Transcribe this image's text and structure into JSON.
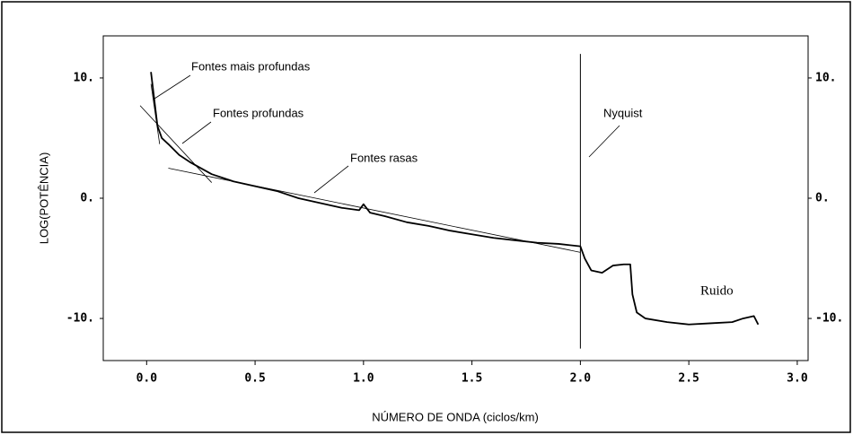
{
  "chart_data": {
    "type": "line",
    "xlabel": "NÚMERO DE ONDA (ciclos/km)",
    "ylabel": "LOG(POTÊNCIA)",
    "xlim": [
      -0.2,
      3.05
    ],
    "ylim": [
      -13.5,
      13.5
    ],
    "y2lim": [
      -13.5,
      13.5
    ],
    "xticks": [
      {
        "value": 0,
        "label": "0.0"
      },
      {
        "value": 0.5,
        "label": "0.5"
      },
      {
        "value": 1,
        "label": "1.0"
      },
      {
        "value": 1.5,
        "label": "1.5"
      },
      {
        "value": 2,
        "label": "2.0"
      },
      {
        "value": 2.5,
        "label": "2.5"
      },
      {
        "value": 3,
        "label": "3.0"
      }
    ],
    "yticks": [
      {
        "value": 10,
        "label": "10."
      },
      {
        "value": 0,
        "label": "0."
      },
      {
        "value": -10,
        "label": "-10."
      }
    ],
    "y2ticks": [
      {
        "value": 10,
        "label": "10."
      },
      {
        "value": 0,
        "label": "0."
      },
      {
        "value": -10,
        "label": "-10."
      }
    ],
    "series": [
      {
        "color": "#000000",
        "x": [
          0.02,
          0.03,
          0.05,
          0.07,
          0.1,
          0.15,
          0.2,
          0.3,
          0.4,
          0.5,
          0.6,
          0.7,
          0.8,
          0.9,
          0.98,
          1.0,
          1.03,
          1.1,
          1.2,
          1.3,
          1.4,
          1.5,
          1.6,
          1.7,
          1.8,
          1.9,
          2.0,
          2.02,
          2.05,
          2.1,
          2.15,
          2.2,
          2.23,
          2.24,
          2.26,
          2.3,
          2.4,
          2.5,
          2.6,
          2.7,
          2.75,
          2.8,
          2.82
        ],
        "values": [
          10.5,
          9,
          6,
          5,
          4.5,
          3.6,
          3,
          2,
          1.4,
          1,
          0.6,
          0,
          -0.4,
          -0.8,
          -1,
          -0.5,
          -1.2,
          -1.5,
          -2,
          -2.3,
          -2.7,
          -3,
          -3.3,
          -3.5,
          -3.7,
          -3.8,
          -4,
          -5,
          -6,
          -6.2,
          -5.6,
          -5.5,
          -5.5,
          -8,
          -9.5,
          -10,
          -10.3,
          -10.5,
          -10.4,
          -10.3,
          -10,
          -9.8,
          -10.5
        ]
      },
      {
        "color": "#000000",
        "x": [
          0.02,
          0.06
        ],
        "values": [
          9.5,
          4.5
        ]
      },
      {
        "color": "#000000",
        "x": [
          -0.03,
          0.3
        ],
        "values": [
          7.7,
          1.3
        ]
      },
      {
        "color": "#000000",
        "x": [
          0.1,
          2.0
        ],
        "values": [
          2.5,
          -4.5
        ]
      }
    ],
    "vline": 2.0,
    "annotations": [
      "Fontes mais profundas",
      "Fontes profundas",
      "Fontes rasas",
      "Nyquist",
      "Ruido"
    ]
  }
}
